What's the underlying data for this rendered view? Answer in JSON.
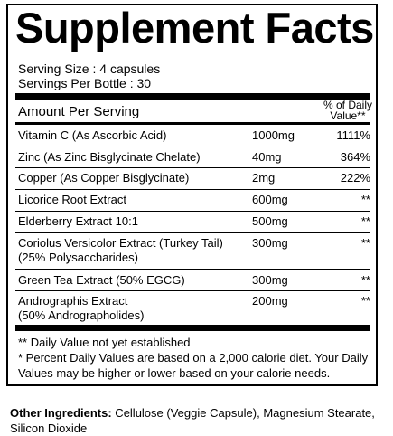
{
  "title": "Supplement Facts",
  "serving_size": "Serving Size : 4 capsules",
  "servings_per_bottle": "Servings Per Bottle : 30",
  "header": {
    "amount_per_serving": "Amount Per Serving",
    "daily_value_line1": "% of Daily",
    "daily_value_line2": "Value**"
  },
  "rows": [
    {
      "name": "Vitamin C (As Ascorbic Acid)",
      "amount": "1000mg",
      "dv": "1111%"
    },
    {
      "name": "Zinc (As Zinc Bisglycinate Chelate)",
      "amount": "40mg",
      "dv": "364%"
    },
    {
      "name": "Copper (As Copper Bisglycinate)",
      "amount": "2mg",
      "dv": "222%"
    },
    {
      "name": "Licorice Root Extract",
      "amount": "600mg",
      "dv": "**"
    },
    {
      "name": "Elderberry Extract 10:1",
      "amount": "500mg",
      "dv": "**"
    },
    {
      "name": "Coriolus Versicolor Extract (Turkey Tail)",
      "name2": "(25% Polysaccharides)",
      "amount": "300mg",
      "dv": "**"
    },
    {
      "name": "Green Tea Extract (50% EGCG)",
      "amount": "300mg",
      "dv": "**"
    },
    {
      "name": "Andrographis Extract",
      "name2": "(50% Andrographolides)",
      "amount": "200mg",
      "dv": "**"
    }
  ],
  "footnotes": {
    "daily_value_note": "** Daily Value not yet established",
    "percent_note": "* Percent Daily Values are based on a 2,000 calorie diet. Your Daily Values may be higher or lower based on your calorie needs."
  },
  "other_ingredients": {
    "label": "Other Ingredients:",
    "text": " Cellulose (Veggie Capsule), Magnesium Stearate, Silicon Dioxide"
  }
}
